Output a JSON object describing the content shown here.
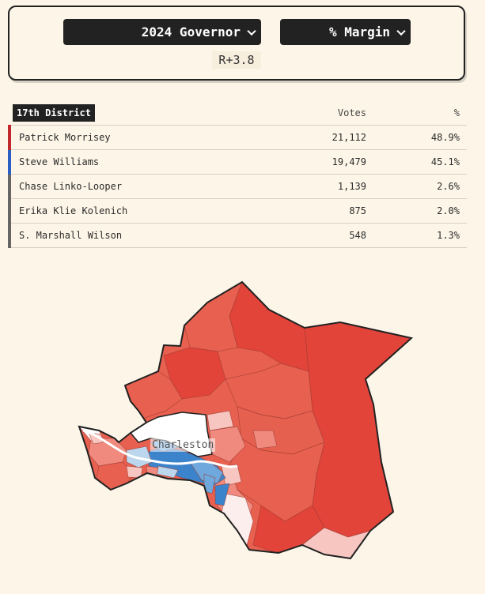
{
  "controls": {
    "race": "2024 Governor",
    "metric": "% Margin",
    "margin": "R+3.8"
  },
  "table": {
    "district": "17th District",
    "votes_header": "Votes",
    "pct_header": "%",
    "rows": [
      {
        "name": "Patrick Morrisey",
        "votes": "21,112",
        "pct": "48.9%",
        "party": "rep"
      },
      {
        "name": "Steve Williams",
        "votes": "19,479",
        "pct": "45.1%",
        "party": "dem"
      },
      {
        "name": "Chase Linko-Looper",
        "votes": "1,139",
        "pct": "2.6%",
        "party": "other"
      },
      {
        "name": "Erika Klie Kolenich",
        "votes": "875",
        "pct": "2.0%",
        "party": "other"
      },
      {
        "name": "S. Marshall Wilson",
        "votes": "548",
        "pct": "1.3%",
        "party": "other"
      }
    ]
  },
  "map": {
    "city_label": "Charleston",
    "colors": {
      "strong_rep": "#e2443a",
      "rep": "#e8604f",
      "lean_rep": "#f08a7e",
      "tilt_rep": "#f8c6c0",
      "tilt_dem": "#bcd6ee",
      "lean_dem": "#6fa8dc",
      "dem": "#3b84cc",
      "neutral": "#ffffff",
      "border": "#222222"
    }
  }
}
